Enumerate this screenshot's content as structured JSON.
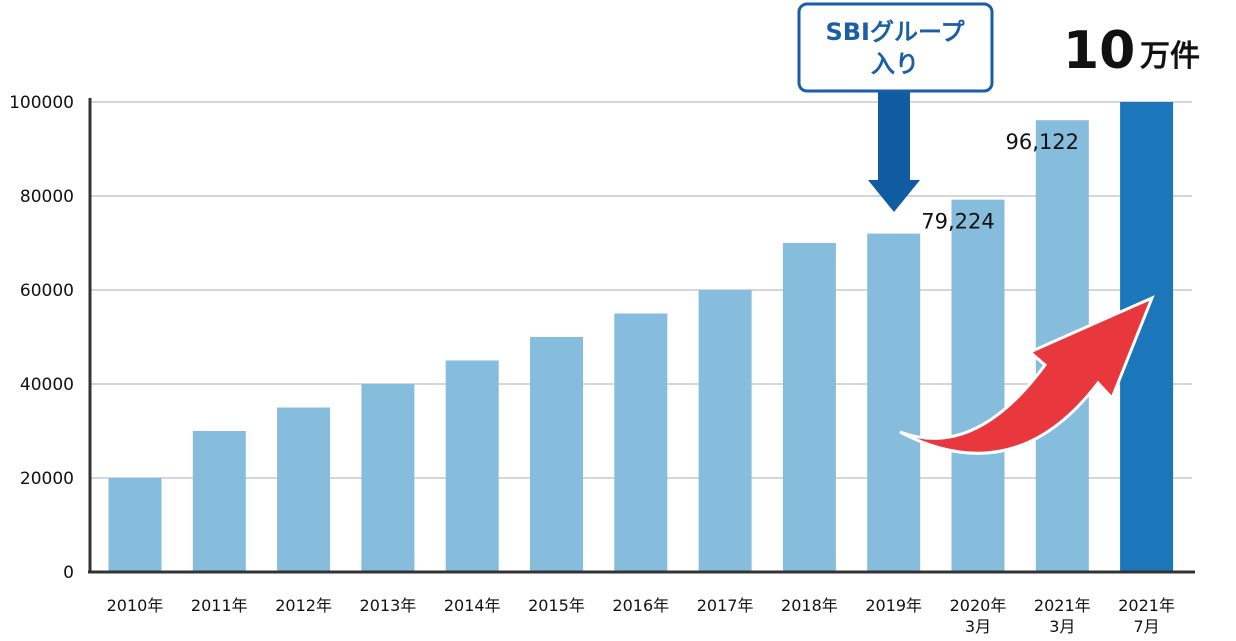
{
  "chart_data": {
    "type": "bar",
    "categories": [
      [
        "2010年"
      ],
      [
        "2011年"
      ],
      [
        "2012年"
      ],
      [
        "2013年"
      ],
      [
        "2014年"
      ],
      [
        "2015年"
      ],
      [
        "2016年"
      ],
      [
        "2017年"
      ],
      [
        "2018年"
      ],
      [
        "2019年"
      ],
      [
        "2020年",
        "3月"
      ],
      [
        "2021年",
        "3月"
      ],
      [
        "2021年",
        "7月"
      ]
    ],
    "values": [
      20000,
      30000,
      35000,
      40000,
      45000,
      50000,
      55000,
      60000,
      70000,
      72000,
      79224,
      96122,
      100000
    ],
    "data_labels": [
      "",
      "",
      "",
      "",
      "",
      "",
      "",
      "",
      "",
      "",
      "79,224",
      "96,122",
      ""
    ],
    "highlight_index": 12,
    "y_ticks": [
      "0",
      "20000",
      "40000",
      "60000",
      "80000",
      "100000"
    ],
    "y_tick_values": [
      0,
      20000,
      40000,
      60000,
      80000,
      100000
    ],
    "ylim": [
      0,
      100000
    ],
    "grid": true,
    "colors": {
      "bar": "#86bcdc",
      "highlight": "#1b77b9",
      "arrow_red": "#e8383d",
      "arrow_blue": "#0f5ca3",
      "callout_border": "#1a5ea8"
    },
    "callout": {
      "lines": [
        "SBIグループ",
        "入り"
      ],
      "points_to_index": 9
    },
    "headline": {
      "number": "10",
      "unit": "万件"
    },
    "title": "",
    "xlabel": "",
    "ylabel": ""
  }
}
